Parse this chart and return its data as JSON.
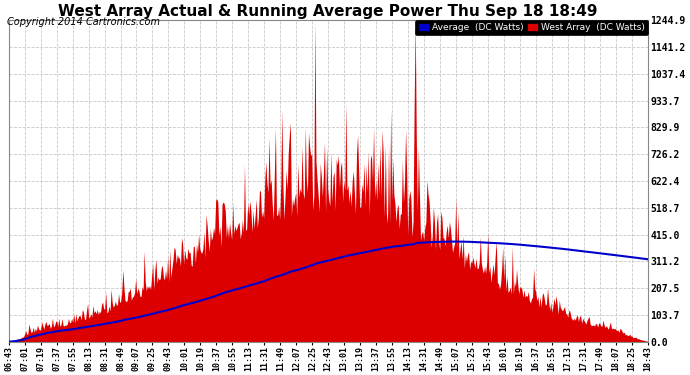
{
  "title": "West Array Actual & Running Average Power Thu Sep 18 18:49",
  "copyright": "Copyright 2014 Cartronics.com",
  "legend_avg": "Average  (DC Watts)",
  "legend_west": "West Array  (DC Watts)",
  "yticks": [
    0.0,
    103.7,
    207.5,
    311.2,
    415.0,
    518.7,
    622.4,
    726.2,
    829.9,
    933.7,
    1037.4,
    1141.2,
    1244.9
  ],
  "ymax": 1244.9,
  "ymin": 0.0,
  "background_color": "#ffffff",
  "grid_color": "#bbbbbb",
  "fill_color": "#dd0000",
  "avg_line_color": "#0000cc",
  "title_color": "#000000",
  "title_fontsize": 11,
  "copyright_fontsize": 7
}
